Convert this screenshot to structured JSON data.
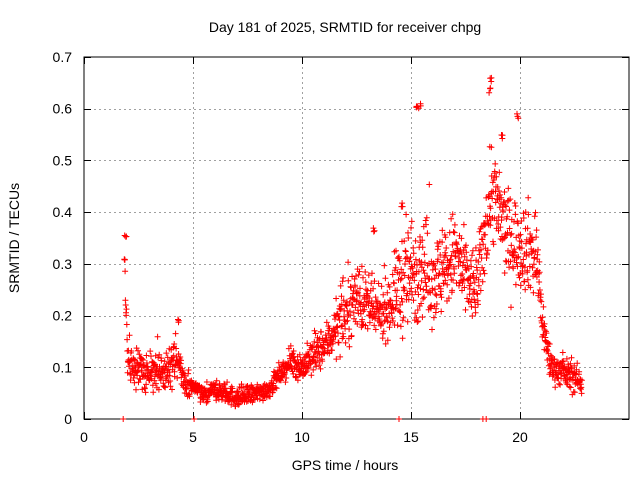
{
  "chart_data": {
    "type": "scatter",
    "title": "Day 181 of 2025, SRMTID for receiver chpg",
    "xlabel": "GPS time / hours",
    "ylabel": "SRMTID / TECUs",
    "xlim": [
      0,
      25
    ],
    "ylim": [
      0,
      0.7
    ],
    "xticks": [
      0,
      5,
      10,
      15,
      20
    ],
    "yticks": [
      0,
      0.1,
      0.2,
      0.3,
      0.4,
      0.5,
      0.6,
      0.7
    ],
    "ytick_labels": [
      "0",
      "0.1",
      "0.2",
      "0.3",
      "0.4",
      "0.5",
      "0.6",
      "0.7"
    ],
    "grid": true,
    "marker": "+",
    "series_color": "#ff0000",
    "envelope": {
      "x": [
        1.85,
        1.9,
        2.0,
        2.2,
        2.5,
        3.0,
        3.5,
        4.0,
        4.3,
        4.6,
        5.0,
        5.5,
        6.0,
        6.5,
        7.0,
        7.5,
        8.0,
        8.5,
        9.0,
        9.5,
        10.0,
        10.5,
        11.0,
        11.5,
        12.0,
        12.5,
        13.0,
        13.5,
        14.0,
        14.5,
        15.0,
        15.5,
        16.0,
        16.5,
        17.0,
        17.5,
        18.0,
        18.3,
        18.7,
        19.0,
        19.5,
        20.0,
        20.5,
        20.8,
        21.0,
        21.3,
        21.5,
        22.0,
        22.5,
        22.8
      ],
      "mean": [
        0.32,
        0.25,
        0.12,
        0.1,
        0.1,
        0.09,
        0.09,
        0.1,
        0.12,
        0.07,
        0.06,
        0.05,
        0.055,
        0.05,
        0.04,
        0.045,
        0.05,
        0.06,
        0.085,
        0.11,
        0.1,
        0.12,
        0.14,
        0.17,
        0.2,
        0.24,
        0.22,
        0.2,
        0.22,
        0.26,
        0.28,
        0.3,
        0.27,
        0.28,
        0.32,
        0.27,
        0.25,
        0.33,
        0.45,
        0.4,
        0.35,
        0.34,
        0.33,
        0.3,
        0.2,
        0.12,
        0.1,
        0.09,
        0.08,
        0.07
      ],
      "spread": [
        0.03,
        0.04,
        0.04,
        0.04,
        0.04,
        0.04,
        0.035,
        0.04,
        0.05,
        0.025,
        0.02,
        0.02,
        0.02,
        0.02,
        0.02,
        0.02,
        0.02,
        0.02,
        0.02,
        0.025,
        0.03,
        0.04,
        0.04,
        0.05,
        0.06,
        0.07,
        0.06,
        0.05,
        0.06,
        0.1,
        0.12,
        0.1,
        0.09,
        0.09,
        0.09,
        0.09,
        0.07,
        0.08,
        0.11,
        0.1,
        0.09,
        0.09,
        0.09,
        0.09,
        0.05,
        0.04,
        0.03,
        0.03,
        0.03,
        0.03
      ],
      "points_per_hour": 80,
      "start_hour": 1.85,
      "end_hour": 22.85
    },
    "peaks": [
      {
        "x": 1.9,
        "y": 0.355
      },
      {
        "x": 15.3,
        "y": 0.61
      },
      {
        "x": 15.4,
        "y": 0.61
      },
      {
        "x": 18.65,
        "y": 0.66
      },
      {
        "x": 18.6,
        "y": 0.64
      },
      {
        "x": 19.9,
        "y": 0.59
      },
      {
        "x": 19.2,
        "y": 0.55
      },
      {
        "x": 14.6,
        "y": 0.42
      },
      {
        "x": 13.3,
        "y": 0.37
      },
      {
        "x": 4.3,
        "y": 0.195
      }
    ],
    "zero_points": [
      {
        "x": 1.8,
        "y": 0
      },
      {
        "x": 5.05,
        "y": 0
      },
      {
        "x": 14.45,
        "y": 0
      },
      {
        "x": 18.3,
        "y": 0
      },
      {
        "x": 18.45,
        "y": 0
      }
    ]
  }
}
